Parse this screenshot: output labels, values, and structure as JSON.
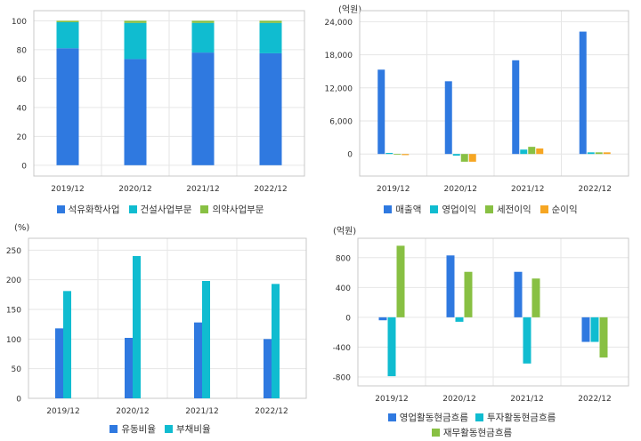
{
  "colors": {
    "blue": "#2f79e0",
    "cyan": "#10bcd0",
    "green": "#88c043",
    "orange": "#f6a623",
    "grid": "#e6e6e6",
    "frame": "#c8c8c8"
  },
  "chart_data": [
    {
      "type": "bar",
      "stacked": true,
      "unit": "",
      "categories": [
        "2019/12",
        "2020/12",
        "2021/12",
        "2022/12"
      ],
      "series": [
        {
          "name": "석유화학사업",
          "values": [
            81,
            73.5,
            78,
            77.5
          ]
        },
        {
          "name": "건설사업부문",
          "values": [
            18,
            25,
            20.5,
            21
          ]
        },
        {
          "name": "의약사업부문",
          "values": [
            1,
            1.5,
            1.5,
            1.5
          ]
        }
      ],
      "ylim": [
        -7.5,
        107
      ],
      "yticks": [
        0,
        20,
        40,
        60,
        80,
        100
      ],
      "grid": true,
      "legend": "bottom"
    },
    {
      "type": "bar",
      "unit": "(억원)",
      "categories": [
        "2019/12",
        "2020/12",
        "2021/12",
        "2022/12"
      ],
      "series": [
        {
          "name": "매출액",
          "values": [
            15300,
            13200,
            17000,
            22200
          ]
        },
        {
          "name": "영업이익",
          "values": [
            200,
            -300,
            800,
            300
          ]
        },
        {
          "name": "세전이익",
          "values": [
            0,
            -1400,
            1300,
            300
          ]
        },
        {
          "name": "순이익",
          "values": [
            -200,
            -1400,
            1000,
            300
          ]
        }
      ],
      "ylim": [
        -4000,
        26000
      ],
      "yticks": [
        0,
        6000,
        12000,
        18000,
        24000
      ],
      "ytick_labels": [
        "0",
        "6,000",
        "12,000",
        "18,000",
        "24,000"
      ],
      "grid": true,
      "legend": "bottom"
    },
    {
      "type": "bar",
      "unit": "(%)",
      "categories": [
        "2019/12",
        "2020/12",
        "2021/12",
        "2022/12"
      ],
      "series": [
        {
          "name": "유동비율",
          "values": [
            118,
            102,
            128,
            100
          ]
        },
        {
          "name": "부채비율",
          "values": [
            181,
            240,
            198,
            193
          ]
        }
      ],
      "ylim": [
        0,
        270
      ],
      "yticks": [
        0,
        50,
        100,
        150,
        200,
        250
      ],
      "grid": true,
      "legend": "bottom"
    },
    {
      "type": "bar",
      "unit": "(억원)",
      "categories": [
        "2019/12",
        "2020/12",
        "2021/12",
        "2022/12"
      ],
      "series": [
        {
          "name": "영업활동현금흐름",
          "values": [
            -40,
            830,
            610,
            -330
          ]
        },
        {
          "name": "투자활동현금흐름",
          "values": [
            -790,
            -60,
            -620,
            -330
          ]
        },
        {
          "name": "재무활동현금흐름",
          "values": [
            960,
            610,
            520,
            -540
          ]
        }
      ],
      "ylim": [
        -920,
        1060
      ],
      "yticks": [
        -800,
        -400,
        0,
        400,
        800
      ],
      "grid": true,
      "legend": "bottom"
    }
  ]
}
